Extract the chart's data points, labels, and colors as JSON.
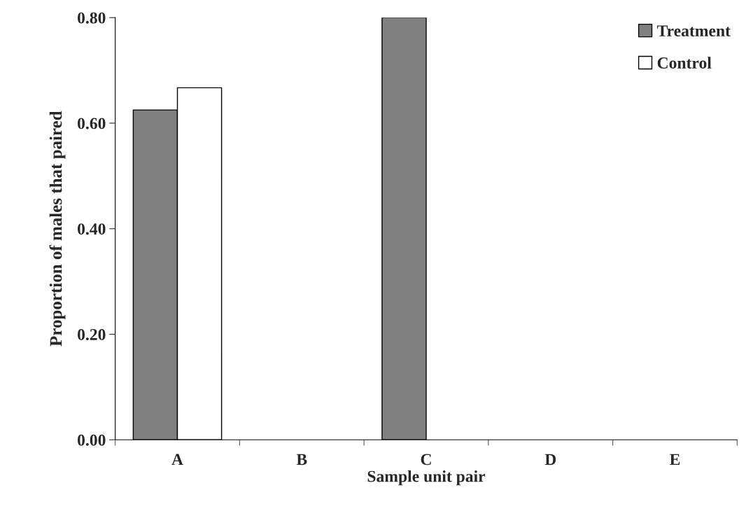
{
  "chart_data": {
    "type": "bar",
    "xlabel": "Sample unit pair",
    "ylabel": "Proportion of males that paired",
    "categories": [
      "A",
      "B",
      "C",
      "D",
      "E"
    ],
    "series": [
      {
        "name": "Treatment",
        "color": "#808080",
        "values": [
          0.625,
          0,
          0.8,
          0,
          0
        ]
      },
      {
        "name": "Control",
        "color": "#ffffff",
        "values": [
          0.667,
          0,
          0,
          0,
          0
        ]
      }
    ],
    "ylim": [
      0,
      0.8
    ],
    "yticks": [
      {
        "value": 0,
        "label": "0.00"
      },
      {
        "value": 0.2,
        "label": "0.20"
      },
      {
        "value": 0.4,
        "label": "0.40"
      },
      {
        "value": 0.6,
        "label": "0.60"
      },
      {
        "value": 0.8,
        "label": "0.80"
      }
    ],
    "grid": false,
    "legend": "top right"
  }
}
